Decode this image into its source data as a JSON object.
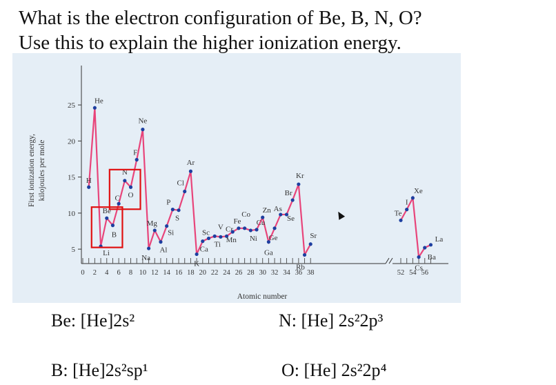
{
  "question": {
    "line1": "What is the electron configuration of Be, B, N, O?",
    "line2": "Use this to explain the higher ionization energy."
  },
  "answers": {
    "be": "Be: [He]2s²",
    "b": "B: [He]2s²sp¹",
    "n": "N: [He] 2s²2p³",
    "o": "O: [He] 2s²2p⁴"
  },
  "colors": {
    "line": "#e8447a",
    "point": "#1d3fa0",
    "highlight": "#e01010",
    "panel": "#e5eef6"
  },
  "chart_data": {
    "type": "line",
    "title": "",
    "xlabel": "Atomic number",
    "ylabel": "First ionization energy, kilojoules per mole",
    "ylim": [
      3,
      26
    ],
    "yticks": [
      "5",
      "10",
      "15",
      "20",
      "25"
    ],
    "xticks_left": [
      "0",
      "2",
      "4",
      "6",
      "8",
      "10",
      "12",
      "14",
      "16",
      "18",
      "20",
      "22",
      "24",
      "26",
      "28",
      "30",
      "32",
      "34",
      "36",
      "38"
    ],
    "xticks_right": [
      "52",
      "54",
      "56"
    ],
    "axis_break": "between 38 and 52",
    "highlighted_groups": [
      [
        "Be",
        "B"
      ],
      [
        "N",
        "O"
      ]
    ],
    "points": [
      {
        "label": "H",
        "x": 1,
        "y": 13.6
      },
      {
        "label": "He",
        "x": 2,
        "y": 24.6
      },
      {
        "label": "Li",
        "x": 3,
        "y": 5.4
      },
      {
        "label": "Be",
        "x": 4,
        "y": 9.3
      },
      {
        "label": "B",
        "x": 5,
        "y": 8.3
      },
      {
        "label": "C",
        "x": 6,
        "y": 11.3
      },
      {
        "label": "N",
        "x": 7,
        "y": 14.5
      },
      {
        "label": "O",
        "x": 8,
        "y": 13.6
      },
      {
        "label": "F",
        "x": 9,
        "y": 17.4
      },
      {
        "label": "Ne",
        "x": 10,
        "y": 21.6
      },
      {
        "label": "Na",
        "x": 11,
        "y": 5.1
      },
      {
        "label": "Mg",
        "x": 12,
        "y": 7.6
      },
      {
        "label": "Al",
        "x": 13,
        "y": 6.0
      },
      {
        "label": "Si",
        "x": 14,
        "y": 8.2
      },
      {
        "label": "P",
        "x": 15,
        "y": 10.5
      },
      {
        "label": "S",
        "x": 16,
        "y": 10.4
      },
      {
        "label": "Cl",
        "x": 17,
        "y": 13.0
      },
      {
        "label": "Ar",
        "x": 18,
        "y": 15.8
      },
      {
        "label": "K",
        "x": 19,
        "y": 4.3
      },
      {
        "label": "Ca",
        "x": 20,
        "y": 6.1
      },
      {
        "label": "Sc",
        "x": 21,
        "y": 6.5
      },
      {
        "label": "Ti",
        "x": 22,
        "y": 6.8
      },
      {
        "label": "V",
        "x": 23,
        "y": 6.7
      },
      {
        "label": "Cr",
        "x": 24,
        "y": 6.8
      },
      {
        "label": "Mn",
        "x": 25,
        "y": 7.4
      },
      {
        "label": "Fe",
        "x": 26,
        "y": 7.9
      },
      {
        "label": "Co",
        "x": 27,
        "y": 7.9
      },
      {
        "label": "Ni",
        "x": 28,
        "y": 7.6
      },
      {
        "label": "Cu",
        "x": 29,
        "y": 7.7
      },
      {
        "label": "Zn",
        "x": 30,
        "y": 9.4
      },
      {
        "label": "Ga",
        "x": 31,
        "y": 6.0
      },
      {
        "label": "Ge",
        "x": 32,
        "y": 7.9
      },
      {
        "label": "As",
        "x": 33,
        "y": 9.8
      },
      {
        "label": "Se",
        "x": 34,
        "y": 9.8
      },
      {
        "label": "Br",
        "x": 35,
        "y": 11.8
      },
      {
        "label": "Kr",
        "x": 36,
        "y": 14.0
      },
      {
        "label": "Rb",
        "x": 37,
        "y": 4.2
      },
      {
        "label": "Sr",
        "x": 38,
        "y": 5.7
      },
      {
        "label": "Te",
        "x": 52,
        "y": 9.0
      },
      {
        "label": "I",
        "x": 53,
        "y": 10.5
      },
      {
        "label": "Xe",
        "x": 54,
        "y": 12.1
      },
      {
        "label": "Cs",
        "x": 55,
        "y": 3.9
      },
      {
        "label": "Ba",
        "x": 56,
        "y": 5.2
      },
      {
        "label": "La",
        "x": 57,
        "y": 5.6
      }
    ]
  }
}
